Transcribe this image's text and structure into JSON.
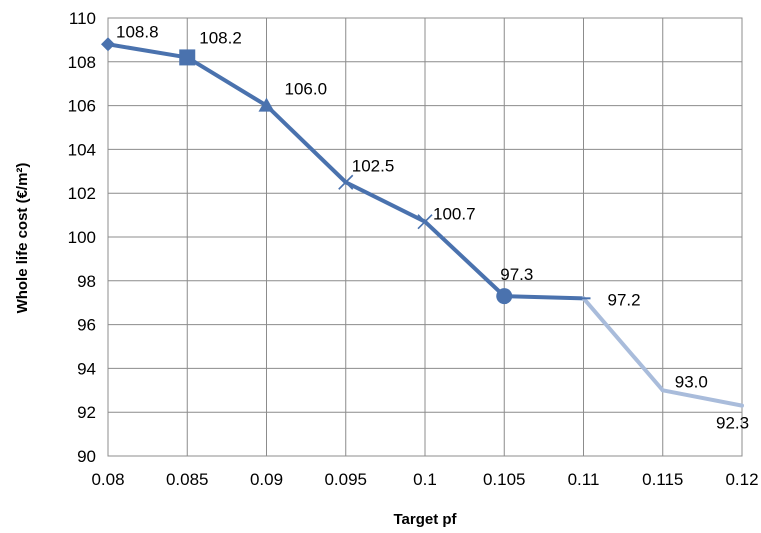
{
  "chart_data": {
    "type": "line",
    "title": "",
    "xlabel": "Target pf",
    "ylabel": "Whole life cost (€/m²)",
    "xlim": [
      0.08,
      0.12
    ],
    "ylim": [
      90,
      110
    ],
    "x_ticks": [
      "0.08",
      "0.085",
      "0.09",
      "0.095",
      "0.1",
      "0.105",
      "0.11",
      "0.115",
      "0.12"
    ],
    "y_ticks": [
      "90",
      "92",
      "94",
      "96",
      "98",
      "100",
      "102",
      "104",
      "106",
      "108",
      "110"
    ],
    "grid": true,
    "legend": "none",
    "colors": {
      "dark": "#4a72ae",
      "light": "#a9bcdb"
    },
    "points": [
      {
        "x": 0.08,
        "y": 108.8,
        "label": "108.8",
        "marker": "diamond"
      },
      {
        "x": 0.085,
        "y": 108.2,
        "label": "108.2",
        "marker": "square"
      },
      {
        "x": 0.09,
        "y": 106.0,
        "label": "106.0",
        "marker": "triangle"
      },
      {
        "x": 0.095,
        "y": 102.5,
        "label": "102.5",
        "marker": "x"
      },
      {
        "x": 0.1,
        "y": 100.7,
        "label": "100.7",
        "marker": "x"
      },
      {
        "x": 0.105,
        "y": 97.3,
        "label": "97.3",
        "marker": "circle"
      },
      {
        "x": 0.11,
        "y": 97.2,
        "label": "97.2",
        "marker": "dash"
      },
      {
        "x": 0.115,
        "y": 93.0,
        "label": "93.0",
        "marker": "none"
      },
      {
        "x": 0.12,
        "y": 92.3,
        "label": "92.3",
        "marker": "none"
      }
    ]
  }
}
